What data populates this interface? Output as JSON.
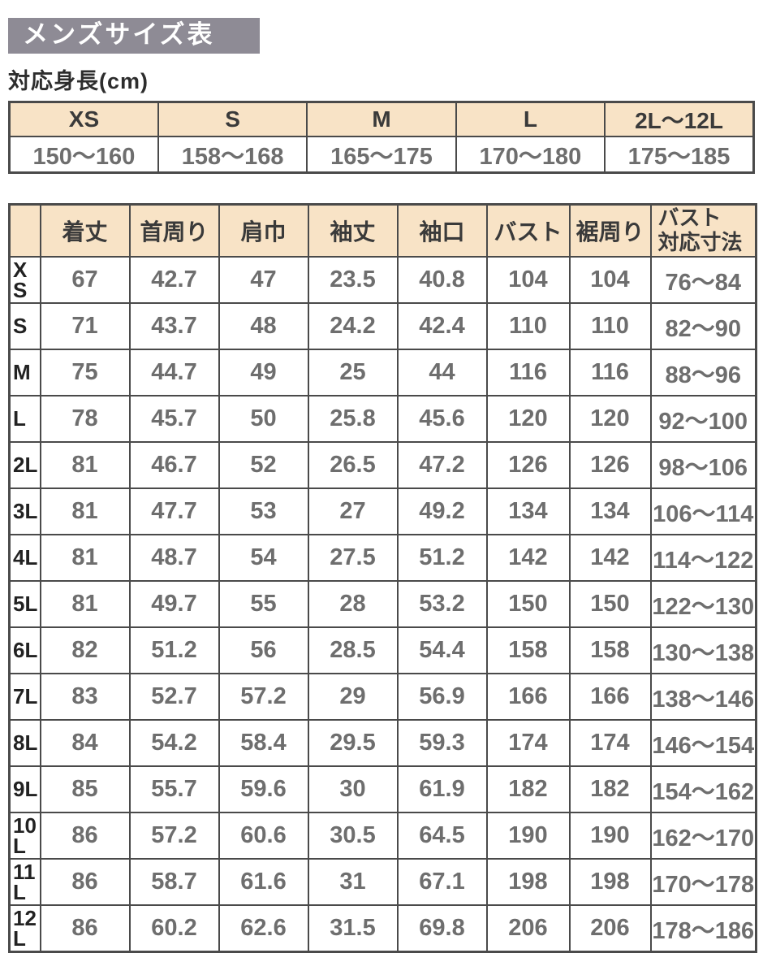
{
  "page": {
    "title": "メンズサイズ表",
    "height_section_label": "対応身長(cm)"
  },
  "colors": {
    "title_bar_bg": "#8e8b95",
    "title_text": "#ffffff",
    "header_cell_bg": "#f8e3c6",
    "border": "#4a4a4a",
    "header_text": "#3a3a3a",
    "value_text": "#6e6e6e"
  },
  "height_table": {
    "columns": [
      "XS",
      "S",
      "M",
      "L",
      "2L〜12L"
    ],
    "values": [
      "150〜160",
      "158〜168",
      "165〜175",
      "170〜180",
      "175〜185"
    ]
  },
  "size_table": {
    "columns": [
      "着丈",
      "首周り",
      "肩巾",
      "袖丈",
      "袖口",
      "バスト",
      "裾周り",
      "バスト\n対応寸法"
    ],
    "rows": [
      {
        "size": "XS",
        "values": [
          "67",
          "42.7",
          "47",
          "23.5",
          "40.8",
          "104",
          "104",
          "76〜84"
        ]
      },
      {
        "size": "S",
        "values": [
          "71",
          "43.7",
          "48",
          "24.2",
          "42.4",
          "110",
          "110",
          "82〜90"
        ]
      },
      {
        "size": "M",
        "values": [
          "75",
          "44.7",
          "49",
          "25",
          "44",
          "116",
          "116",
          "88〜96"
        ]
      },
      {
        "size": "L",
        "values": [
          "78",
          "45.7",
          "50",
          "25.8",
          "45.6",
          "120",
          "120",
          "92〜100"
        ]
      },
      {
        "size": "2L",
        "values": [
          "81",
          "46.7",
          "52",
          "26.5",
          "47.2",
          "126",
          "126",
          "98〜106"
        ]
      },
      {
        "size": "3L",
        "values": [
          "81",
          "47.7",
          "53",
          "27",
          "49.2",
          "134",
          "134",
          "106〜114"
        ]
      },
      {
        "size": "4L",
        "values": [
          "81",
          "48.7",
          "54",
          "27.5",
          "51.2",
          "142",
          "142",
          "114〜122"
        ]
      },
      {
        "size": "5L",
        "values": [
          "81",
          "49.7",
          "55",
          "28",
          "53.2",
          "150",
          "150",
          "122〜130"
        ]
      },
      {
        "size": "6L",
        "values": [
          "82",
          "51.2",
          "56",
          "28.5",
          "54.4",
          "158",
          "158",
          "130〜138"
        ]
      },
      {
        "size": "7L",
        "values": [
          "83",
          "52.7",
          "57.2",
          "29",
          "56.9",
          "166",
          "166",
          "138〜146"
        ]
      },
      {
        "size": "8L",
        "values": [
          "84",
          "54.2",
          "58.4",
          "29.5",
          "59.3",
          "174",
          "174",
          "146〜154"
        ]
      },
      {
        "size": "9L",
        "values": [
          "85",
          "55.7",
          "59.6",
          "30",
          "61.9",
          "182",
          "182",
          "154〜162"
        ]
      },
      {
        "size": "10L",
        "values": [
          "86",
          "57.2",
          "60.6",
          "30.5",
          "64.5",
          "190",
          "190",
          "162〜170"
        ]
      },
      {
        "size": "11L",
        "values": [
          "86",
          "58.7",
          "61.6",
          "31",
          "67.1",
          "198",
          "198",
          "170〜178"
        ]
      },
      {
        "size": "12L",
        "values": [
          "86",
          "60.2",
          "62.6",
          "31.5",
          "69.8",
          "206",
          "206",
          "178〜186"
        ]
      }
    ]
  }
}
